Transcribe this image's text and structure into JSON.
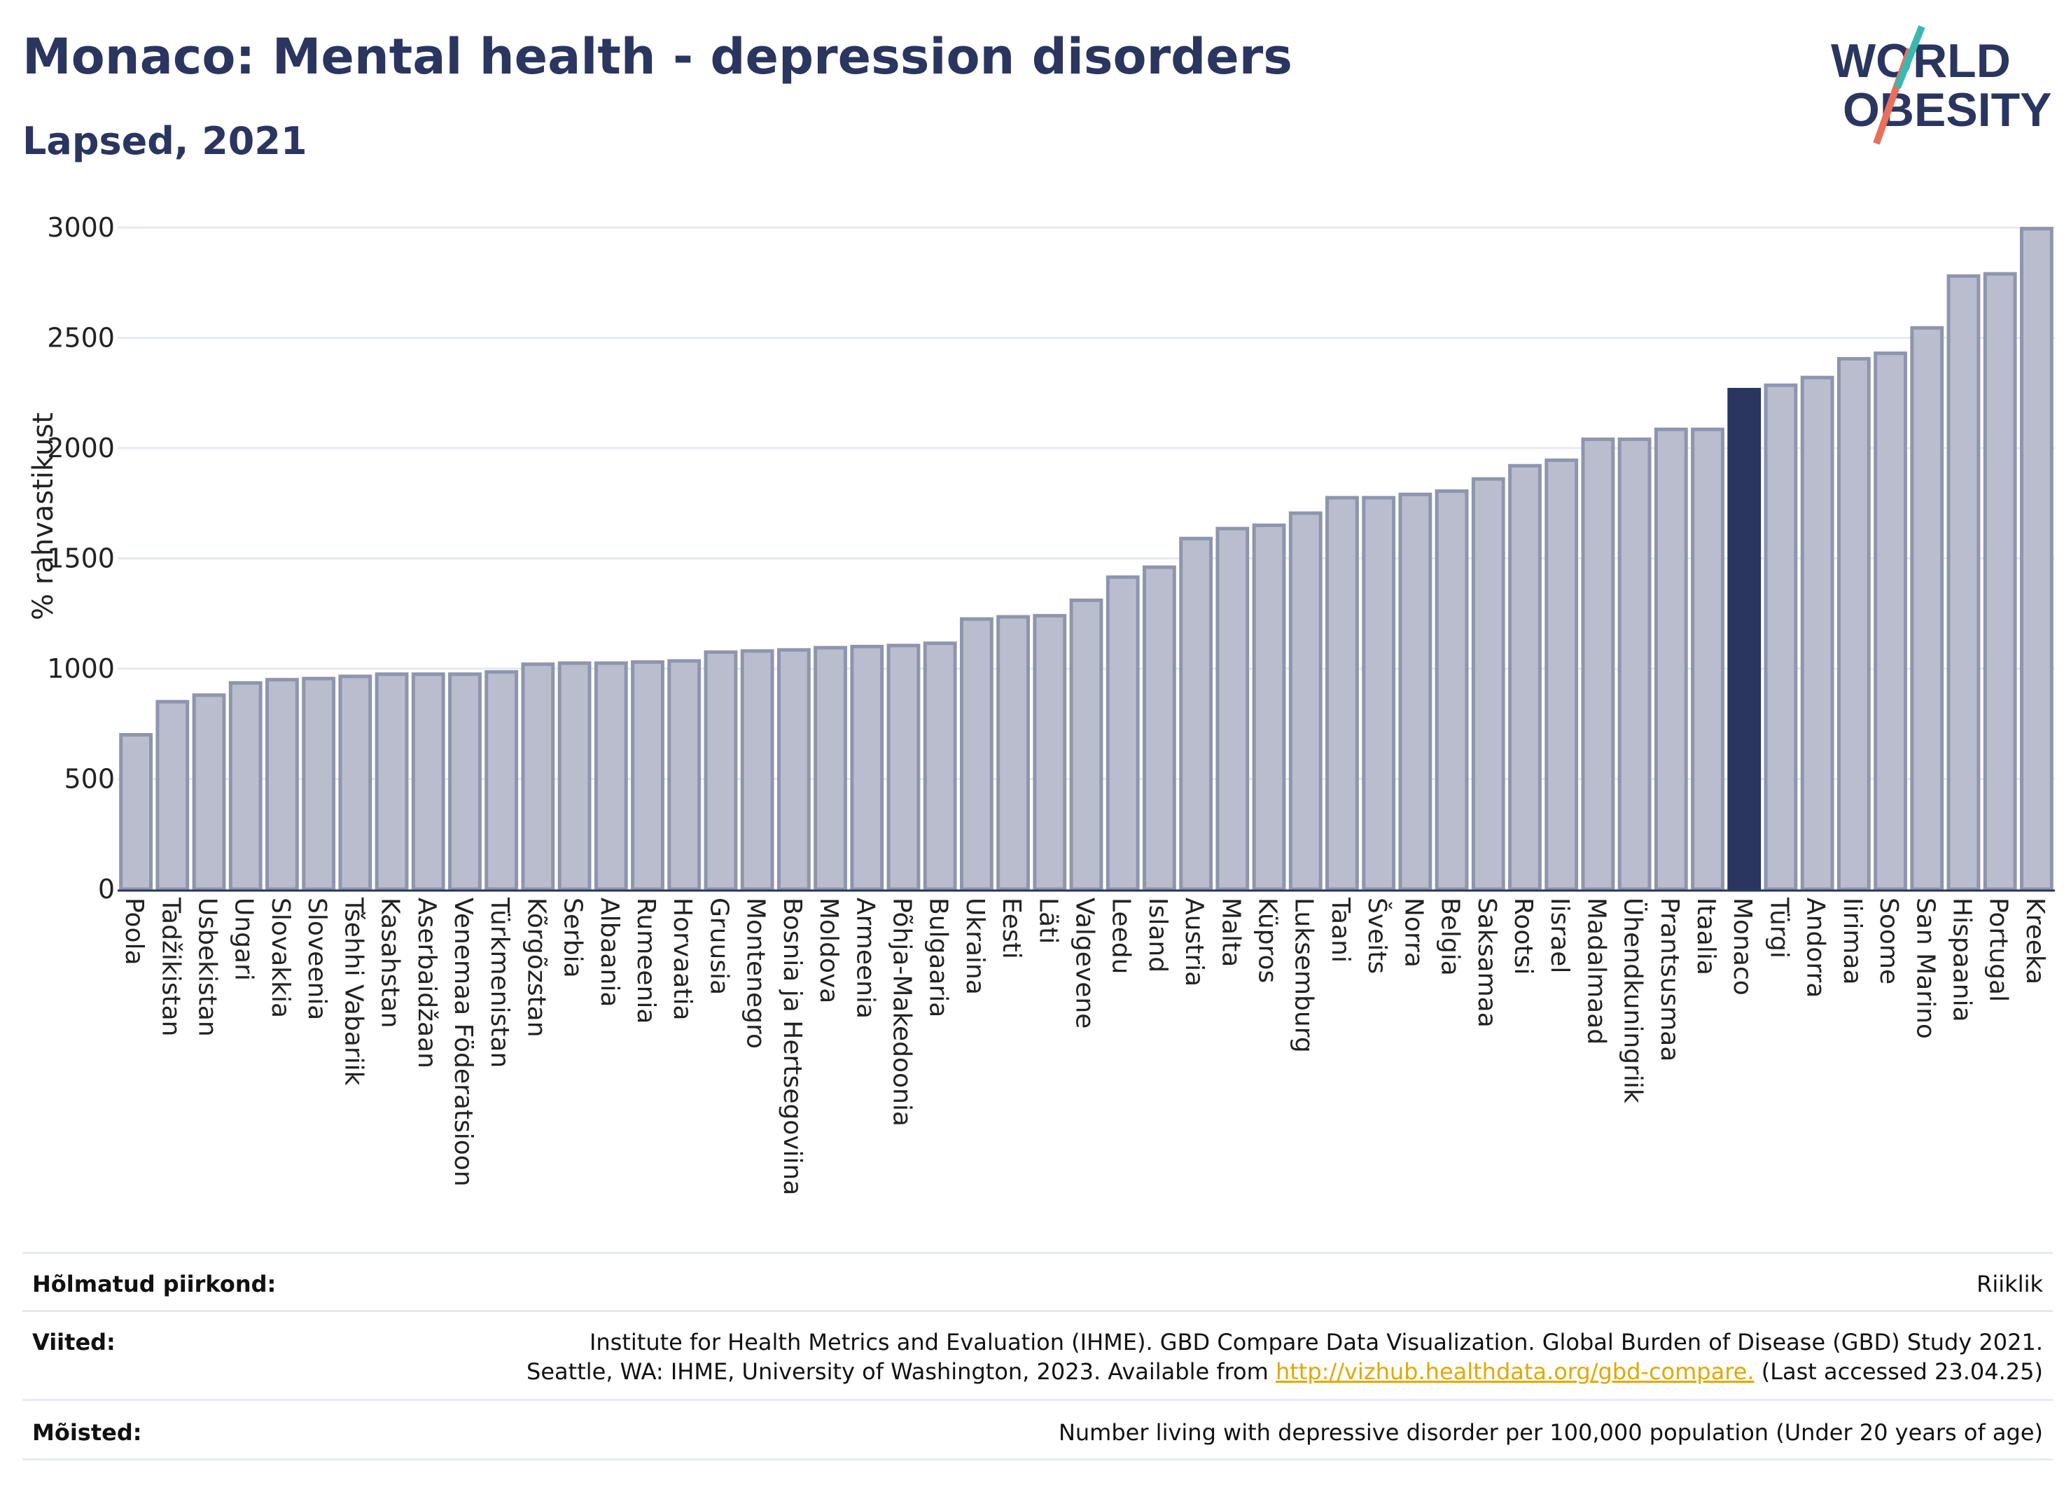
{
  "title": "Monaco: Mental health - depression disorders",
  "subtitle": "Lapsed, 2021",
  "logo": {
    "line1": "WORLD",
    "line2": "OBESITY"
  },
  "colors": {
    "bar": "#b9bdce",
    "bar_stroke": "#8e95ad",
    "highlight": "#2a3560",
    "title": "#2a3560",
    "grid": "#e6e9ef",
    "link": "#e0a800"
  },
  "chart_data": {
    "type": "bar",
    "ylabel": "% rahvastikust",
    "ylim": [
      0,
      3000
    ],
    "yticks": [
      0,
      500,
      1000,
      1500,
      2000,
      2500,
      3000
    ],
    "grid": true,
    "highlight": "Monaco",
    "categories": [
      "Poola",
      "Tadžikistan",
      "Usbekistan",
      "Ungari",
      "Slovakkia",
      "Sloveenia",
      "Tšehhi Vabariik",
      "Kasahstan",
      "Aserbaidžaan",
      "Venemaa Föderatsioon",
      "Türkmenistan",
      "Kõrgõzstan",
      "Serbia",
      "Albaania",
      "Rumeenia",
      "Horvaatia",
      "Gruusia",
      "Montenegro",
      "Bosnia ja Hertsegoviina",
      "Moldova",
      "Armeenia",
      "Põhja-Makedoonia",
      "Bulgaaria",
      "Ukraina",
      "Eesti",
      "Läti",
      "Valgevene",
      "Leedu",
      "Island",
      "Austria",
      "Malta",
      "Küpros",
      "Luksemburg",
      "Taani",
      "Šveits",
      "Norra",
      "Belgia",
      "Saksamaa",
      "Rootsi",
      "Iisrael",
      "Madalmaad",
      "Ühendkuningriik",
      "Prantsusmaa",
      "Itaalia",
      "Monaco",
      "Türgi",
      "Andorra",
      "Iirimaa",
      "Soome",
      "San Marino",
      "Hispaania",
      "Portugal",
      "Kreeka"
    ],
    "values": [
      700,
      850,
      880,
      935,
      950,
      955,
      965,
      975,
      975,
      975,
      985,
      1020,
      1025,
      1025,
      1030,
      1035,
      1075,
      1080,
      1085,
      1095,
      1100,
      1105,
      1115,
      1225,
      1235,
      1240,
      1310,
      1415,
      1460,
      1590,
      1635,
      1650,
      1705,
      1775,
      1775,
      1790,
      1805,
      1860,
      1920,
      1945,
      2040,
      2040,
      2085,
      2085,
      2265,
      2285,
      2320,
      2405,
      2430,
      2545,
      2780,
      2790,
      2995
    ]
  },
  "footer": {
    "rows": [
      {
        "label": "Hõlmatud piirkond:",
        "lines": [
          "Riiklik"
        ]
      },
      {
        "label": "Viited:",
        "lines": [
          "Institute for Health Metrics and Evaluation (IHME). GBD Compare Data Visualization. Global Burden of Disease (GBD) Study 2021.",
          "Seattle, WA: IHME, University of Washington, 2023. Available from "
        ],
        "link": "http://vizhub.healthdata.org/gbd-compare.",
        "after_link": " (Last accessed 23.04.25)"
      },
      {
        "label": "Mõisted:",
        "lines": [
          "Number living with depressive disorder per 100,000 population (Under 20 years of age)"
        ]
      }
    ]
  }
}
